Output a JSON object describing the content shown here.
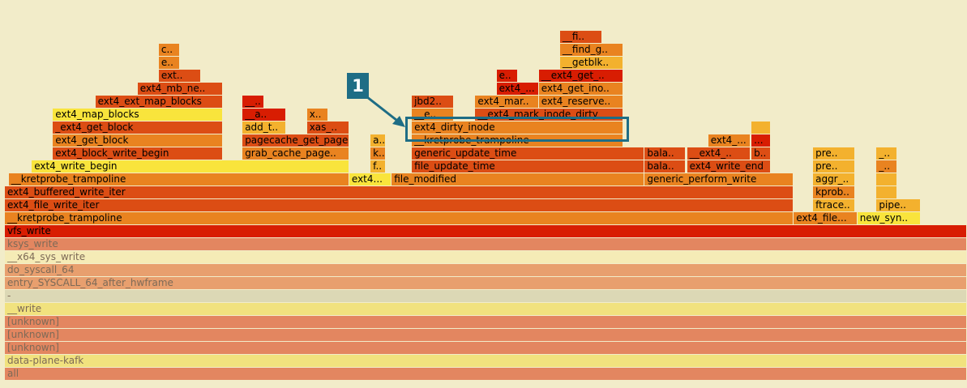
{
  "chart_data": {
    "type": "flamegraph",
    "colors": {
      "background": "#f2ecc9",
      "callout": "#1e6d85",
      "dim_palette": [
        "#e38660",
        "#f1e27e",
        "#e89f6e",
        "#dcd8b5",
        "#f5ebb6"
      ],
      "hot_palette": [
        "#d81d02",
        "#dc4d14",
        "#e98320",
        "#f3b12e",
        "#f9e43c"
      ]
    },
    "callout": {
      "label": "1",
      "target": "ext4_dirty_inode"
    },
    "frames": [
      {
        "name": "all",
        "start": 0,
        "end": 1000,
        "depth": 0,
        "shade": "d1"
      },
      {
        "name": "data-plane-kafk",
        "start": 0,
        "end": 1000,
        "depth": 1,
        "shade": "d2"
      },
      {
        "name": "[unknown]",
        "start": 0,
        "end": 1000,
        "depth": 2,
        "shade": "d1"
      },
      {
        "name": "[unknown]",
        "start": 0,
        "end": 1000,
        "depth": 3,
        "shade": "d1"
      },
      {
        "name": "[unknown]",
        "start": 0,
        "end": 1000,
        "depth": 4,
        "shade": "d1"
      },
      {
        "name": "__write",
        "start": 0,
        "end": 1000,
        "depth": 5,
        "shade": "d2"
      },
      {
        "name": "-",
        "start": 0,
        "end": 1000,
        "depth": 6,
        "shade": "d4"
      },
      {
        "name": "entry_SYSCALL_64_after_hwframe",
        "start": 0,
        "end": 1000,
        "depth": 7,
        "shade": "d3"
      },
      {
        "name": "do_syscall_64",
        "start": 0,
        "end": 1000,
        "depth": 8,
        "shade": "d3"
      },
      {
        "name": "__x64_sys_write",
        "start": 0,
        "end": 1000,
        "depth": 9,
        "shade": "d5"
      },
      {
        "name": "ksys_write",
        "start": 0,
        "end": 1000,
        "depth": 10,
        "shade": "d1"
      },
      {
        "name": "vfs_write",
        "start": 0,
        "end": 1000,
        "depth": 11,
        "shade": "h1"
      },
      {
        "name": "__kretprobe_trampoline",
        "start": 0,
        "end": 820,
        "depth": 12,
        "shade": "h3"
      },
      {
        "name": "ext4_file...",
        "start": 820,
        "end": 886,
        "depth": 12,
        "shade": "h3"
      },
      {
        "name": "new_syn..",
        "start": 886,
        "end": 952,
        "depth": 12,
        "shade": "h5"
      },
      {
        "name": "ext4_file_write_iter",
        "start": 0,
        "end": 820,
        "depth": 13,
        "shade": "h2"
      },
      {
        "name": "ftrace..",
        "start": 840,
        "end": 884,
        "depth": 13,
        "shade": "h4"
      },
      {
        "name": "pipe..",
        "start": 906,
        "end": 952,
        "depth": 13,
        "shade": "h4"
      },
      {
        "name": "ext4_buffered_write_iter",
        "start": 0,
        "end": 820,
        "depth": 14,
        "shade": "h2"
      },
      {
        "name": "kprob..",
        "start": 840,
        "end": 884,
        "depth": 14,
        "shade": "h3"
      },
      {
        "name": "",
        "start": 906,
        "end": 928,
        "depth": 14,
        "shade": "h4"
      },
      {
        "name": "__kretprobe_trampoline",
        "start": 4,
        "end": 358,
        "depth": 15,
        "shade": "h3"
      },
      {
        "name": "ext4...",
        "start": 358,
        "end": 402,
        "depth": 15,
        "shade": "h5"
      },
      {
        "name": "file_modified",
        "start": 402,
        "end": 665,
        "depth": 15,
        "shade": "h3"
      },
      {
        "name": "generic_perform_write",
        "start": 665,
        "end": 820,
        "depth": 15,
        "shade": "h3"
      },
      {
        "name": "aggr_..",
        "start": 840,
        "end": 884,
        "depth": 15,
        "shade": "h4"
      },
      {
        "name": "",
        "start": 906,
        "end": 928,
        "depth": 15,
        "shade": "h4"
      },
      {
        "name": "ext4_write_begin",
        "start": 28,
        "end": 358,
        "depth": 16,
        "shade": "h5"
      },
      {
        "name": "f..",
        "start": 380,
        "end": 396,
        "depth": 16,
        "shade": "h4"
      },
      {
        "name": "file_update_time",
        "start": 423,
        "end": 665,
        "depth": 16,
        "shade": "h2"
      },
      {
        "name": "bala..",
        "start": 665,
        "end": 708,
        "depth": 16,
        "shade": "h2"
      },
      {
        "name": "ext4_write_end",
        "start": 709,
        "end": 796,
        "depth": 16,
        "shade": "h2"
      },
      {
        "name": "pre..",
        "start": 840,
        "end": 884,
        "depth": 16,
        "shade": "h4"
      },
      {
        "name": "_..",
        "start": 906,
        "end": 928,
        "depth": 16,
        "shade": "h3"
      },
      {
        "name": "ext4_block_write_begin",
        "start": 50,
        "end": 227,
        "depth": 17,
        "shade": "h2"
      },
      {
        "name": "grab_cache_page..",
        "start": 247,
        "end": 358,
        "depth": 17,
        "shade": "h3"
      },
      {
        "name": "k..",
        "start": 380,
        "end": 396,
        "depth": 17,
        "shade": "h3"
      },
      {
        "name": "generic_update_time",
        "start": 423,
        "end": 665,
        "depth": 17,
        "shade": "h2"
      },
      {
        "name": "bala..",
        "start": 665,
        "end": 708,
        "depth": 17,
        "shade": "h2"
      },
      {
        "name": "__ext4_..",
        "start": 709,
        "end": 775,
        "depth": 17,
        "shade": "h2"
      },
      {
        "name": "b..",
        "start": 776,
        "end": 796,
        "depth": 17,
        "shade": "h2"
      },
      {
        "name": "pre..",
        "start": 840,
        "end": 884,
        "depth": 17,
        "shade": "h4"
      },
      {
        "name": "_..",
        "start": 906,
        "end": 928,
        "depth": 17,
        "shade": "h4"
      },
      {
        "name": "ext4_get_block",
        "start": 50,
        "end": 227,
        "depth": 18,
        "shade": "h3"
      },
      {
        "name": "pagecache_get_page",
        "start": 247,
        "end": 358,
        "depth": 18,
        "shade": "h2"
      },
      {
        "name": "a..",
        "start": 380,
        "end": 396,
        "depth": 18,
        "shade": "h4"
      },
      {
        "name": "__kretprobe_trampoline",
        "start": 423,
        "end": 643,
        "depth": 18,
        "shade": "h3"
      },
      {
        "name": "ext4_...",
        "start": 731,
        "end": 775,
        "depth": 18,
        "shade": "h3"
      },
      {
        "name": "...",
        "start": 776,
        "end": 796,
        "depth": 18,
        "shade": "h1"
      },
      {
        "name": "_ext4_get_block",
        "start": 50,
        "end": 227,
        "depth": 19,
        "shade": "h2"
      },
      {
        "name": "add_t..",
        "start": 247,
        "end": 292,
        "depth": 19,
        "shade": "h4"
      },
      {
        "name": "xas_..",
        "start": 314,
        "end": 358,
        "depth": 19,
        "shade": "h2"
      },
      {
        "name": "ext4_dirty_inode",
        "start": 423,
        "end": 643,
        "depth": 19,
        "shade": "h3"
      },
      {
        "name": "",
        "start": 776,
        "end": 796,
        "depth": 19,
        "shade": "h4"
      },
      {
        "name": "ext4_map_blocks",
        "start": 50,
        "end": 227,
        "depth": 20,
        "shade": "h5"
      },
      {
        "name": "__a..",
        "start": 247,
        "end": 292,
        "depth": 20,
        "shade": "h1"
      },
      {
        "name": "x..",
        "start": 314,
        "end": 336,
        "depth": 20,
        "shade": "h3"
      },
      {
        "name": "__e..",
        "start": 423,
        "end": 467,
        "depth": 20,
        "shade": "h3"
      },
      {
        "name": "__ext4_mark_inode_dirty",
        "start": 489,
        "end": 643,
        "depth": 20,
        "shade": "h2"
      },
      {
        "name": "ext4_ext_map_blocks",
        "start": 94,
        "end": 227,
        "depth": 21,
        "shade": "h2"
      },
      {
        "name": "__..",
        "start": 247,
        "end": 270,
        "depth": 21,
        "shade": "h1"
      },
      {
        "name": "jbd2..",
        "start": 423,
        "end": 467,
        "depth": 21,
        "shade": "h2"
      },
      {
        "name": "ext4_mar..",
        "start": 489,
        "end": 555,
        "depth": 21,
        "shade": "h3"
      },
      {
        "name": "ext4_reserve..",
        "start": 555,
        "end": 643,
        "depth": 21,
        "shade": "h3"
      },
      {
        "name": "ext4_mb_ne..",
        "start": 138,
        "end": 227,
        "depth": 22,
        "shade": "h2"
      },
      {
        "name": "ext4_...",
        "start": 511,
        "end": 555,
        "depth": 22,
        "shade": "h1"
      },
      {
        "name": "ext4_get_ino..",
        "start": 555,
        "end": 643,
        "depth": 22,
        "shade": "h3"
      },
      {
        "name": "ext..",
        "start": 160,
        "end": 204,
        "depth": 23,
        "shade": "h2"
      },
      {
        "name": "e..",
        "start": 511,
        "end": 533,
        "depth": 23,
        "shade": "h1"
      },
      {
        "name": "__ext4_get_..",
        "start": 555,
        "end": 643,
        "depth": 23,
        "shade": "h1"
      },
      {
        "name": "e..",
        "start": 160,
        "end": 182,
        "depth": 24,
        "shade": "h3"
      },
      {
        "name": "__getblk..",
        "start": 577,
        "end": 643,
        "depth": 24,
        "shade": "h4"
      },
      {
        "name": "c..",
        "start": 160,
        "end": 182,
        "depth": 25,
        "shade": "h3"
      },
      {
        "name": "__find_g..",
        "start": 577,
        "end": 643,
        "depth": 25,
        "shade": "h3"
      },
      {
        "name": "__fi..",
        "start": 577,
        "end": 621,
        "depth": 26,
        "shade": "h2"
      }
    ]
  }
}
